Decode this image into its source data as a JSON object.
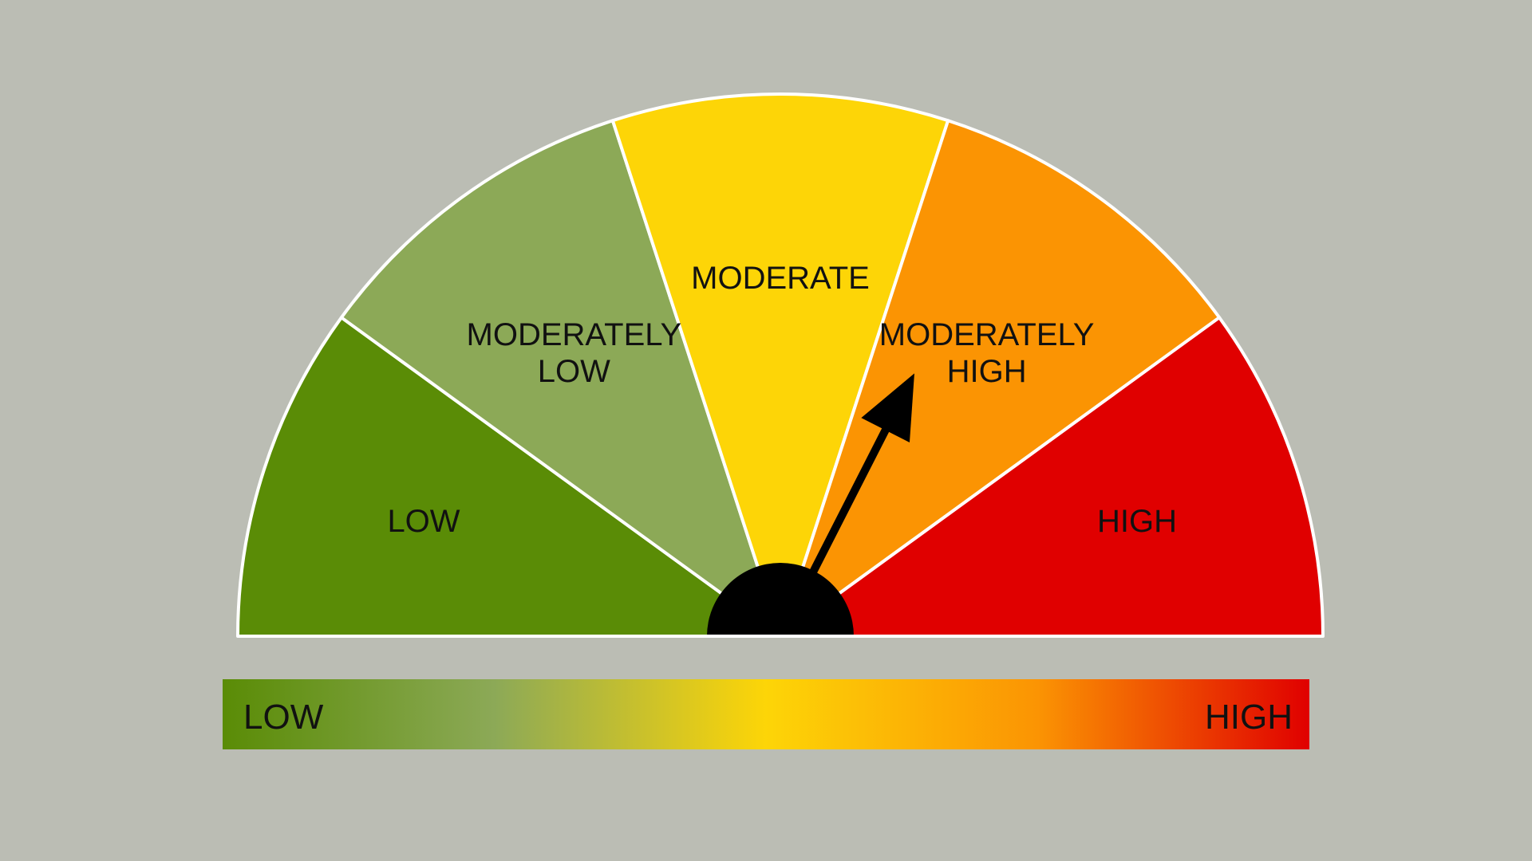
{
  "gauge": {
    "segments": [
      {
        "label": "LOW",
        "color": "#5a8c06"
      },
      {
        "label": "MODERATELY LOW",
        "color": "#8ca957"
      },
      {
        "label": "MODERATE",
        "color": "#fdd507"
      },
      {
        "label": "MODERATELY HIGH",
        "color": "#fb9403"
      },
      {
        "label": "HIGH",
        "color": "#e00000"
      }
    ],
    "needle_level": 0.65,
    "outline_color": "#ffffff",
    "hub_color": "#000000",
    "needle_color": "#000000"
  },
  "scale_bar": {
    "low_label": "LOW",
    "high_label": "HIGH",
    "gradient_colors": [
      "#5a8c06",
      "#8ca957",
      "#fdd507",
      "#fb9403",
      "#e00000"
    ]
  }
}
